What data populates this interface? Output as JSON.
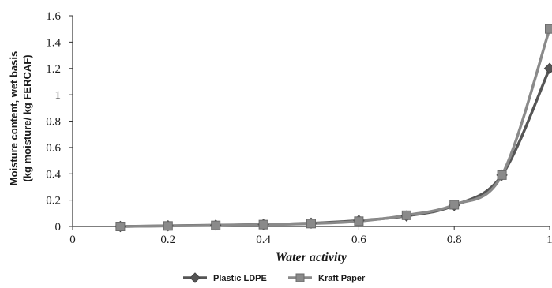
{
  "chart_data": {
    "type": "line",
    "title": "",
    "xlabel": "Water activity",
    "ylabel_lines": [
      "Moisture content, wet basis",
      "(kg moisture/ kg FERCAF)"
    ],
    "xlim": [
      0,
      1
    ],
    "ylim": [
      0,
      1.6
    ],
    "x_ticks": [
      "0",
      "0.2",
      "0.4",
      "0.6",
      "0.8",
      "1"
    ],
    "y_ticks": [
      "0",
      "0.2",
      "0.4",
      "0.6",
      "0.8",
      "1",
      "1.2",
      "1.4",
      "1.6"
    ],
    "grid": false,
    "legend_position": "bottom",
    "series": [
      {
        "name": "Plastic LDPE",
        "marker": "diamond",
        "color": "#555555",
        "x": [
          0.1,
          0.2,
          0.3,
          0.4,
          0.5,
          0.6,
          0.7,
          0.8,
          0.9,
          1.0
        ],
        "y": [
          0.0,
          0.005,
          0.01,
          0.015,
          0.025,
          0.045,
          0.08,
          0.16,
          0.39,
          1.2
        ]
      },
      {
        "name": "Kraft Paper",
        "marker": "square",
        "color": "#8a8a8a",
        "x": [
          0.1,
          0.2,
          0.3,
          0.4,
          0.5,
          0.6,
          0.7,
          0.8,
          0.9,
          1.0
        ],
        "y": [
          0.0,
          0.004,
          0.008,
          0.014,
          0.022,
          0.04,
          0.085,
          0.165,
          0.39,
          1.5
        ]
      }
    ]
  }
}
